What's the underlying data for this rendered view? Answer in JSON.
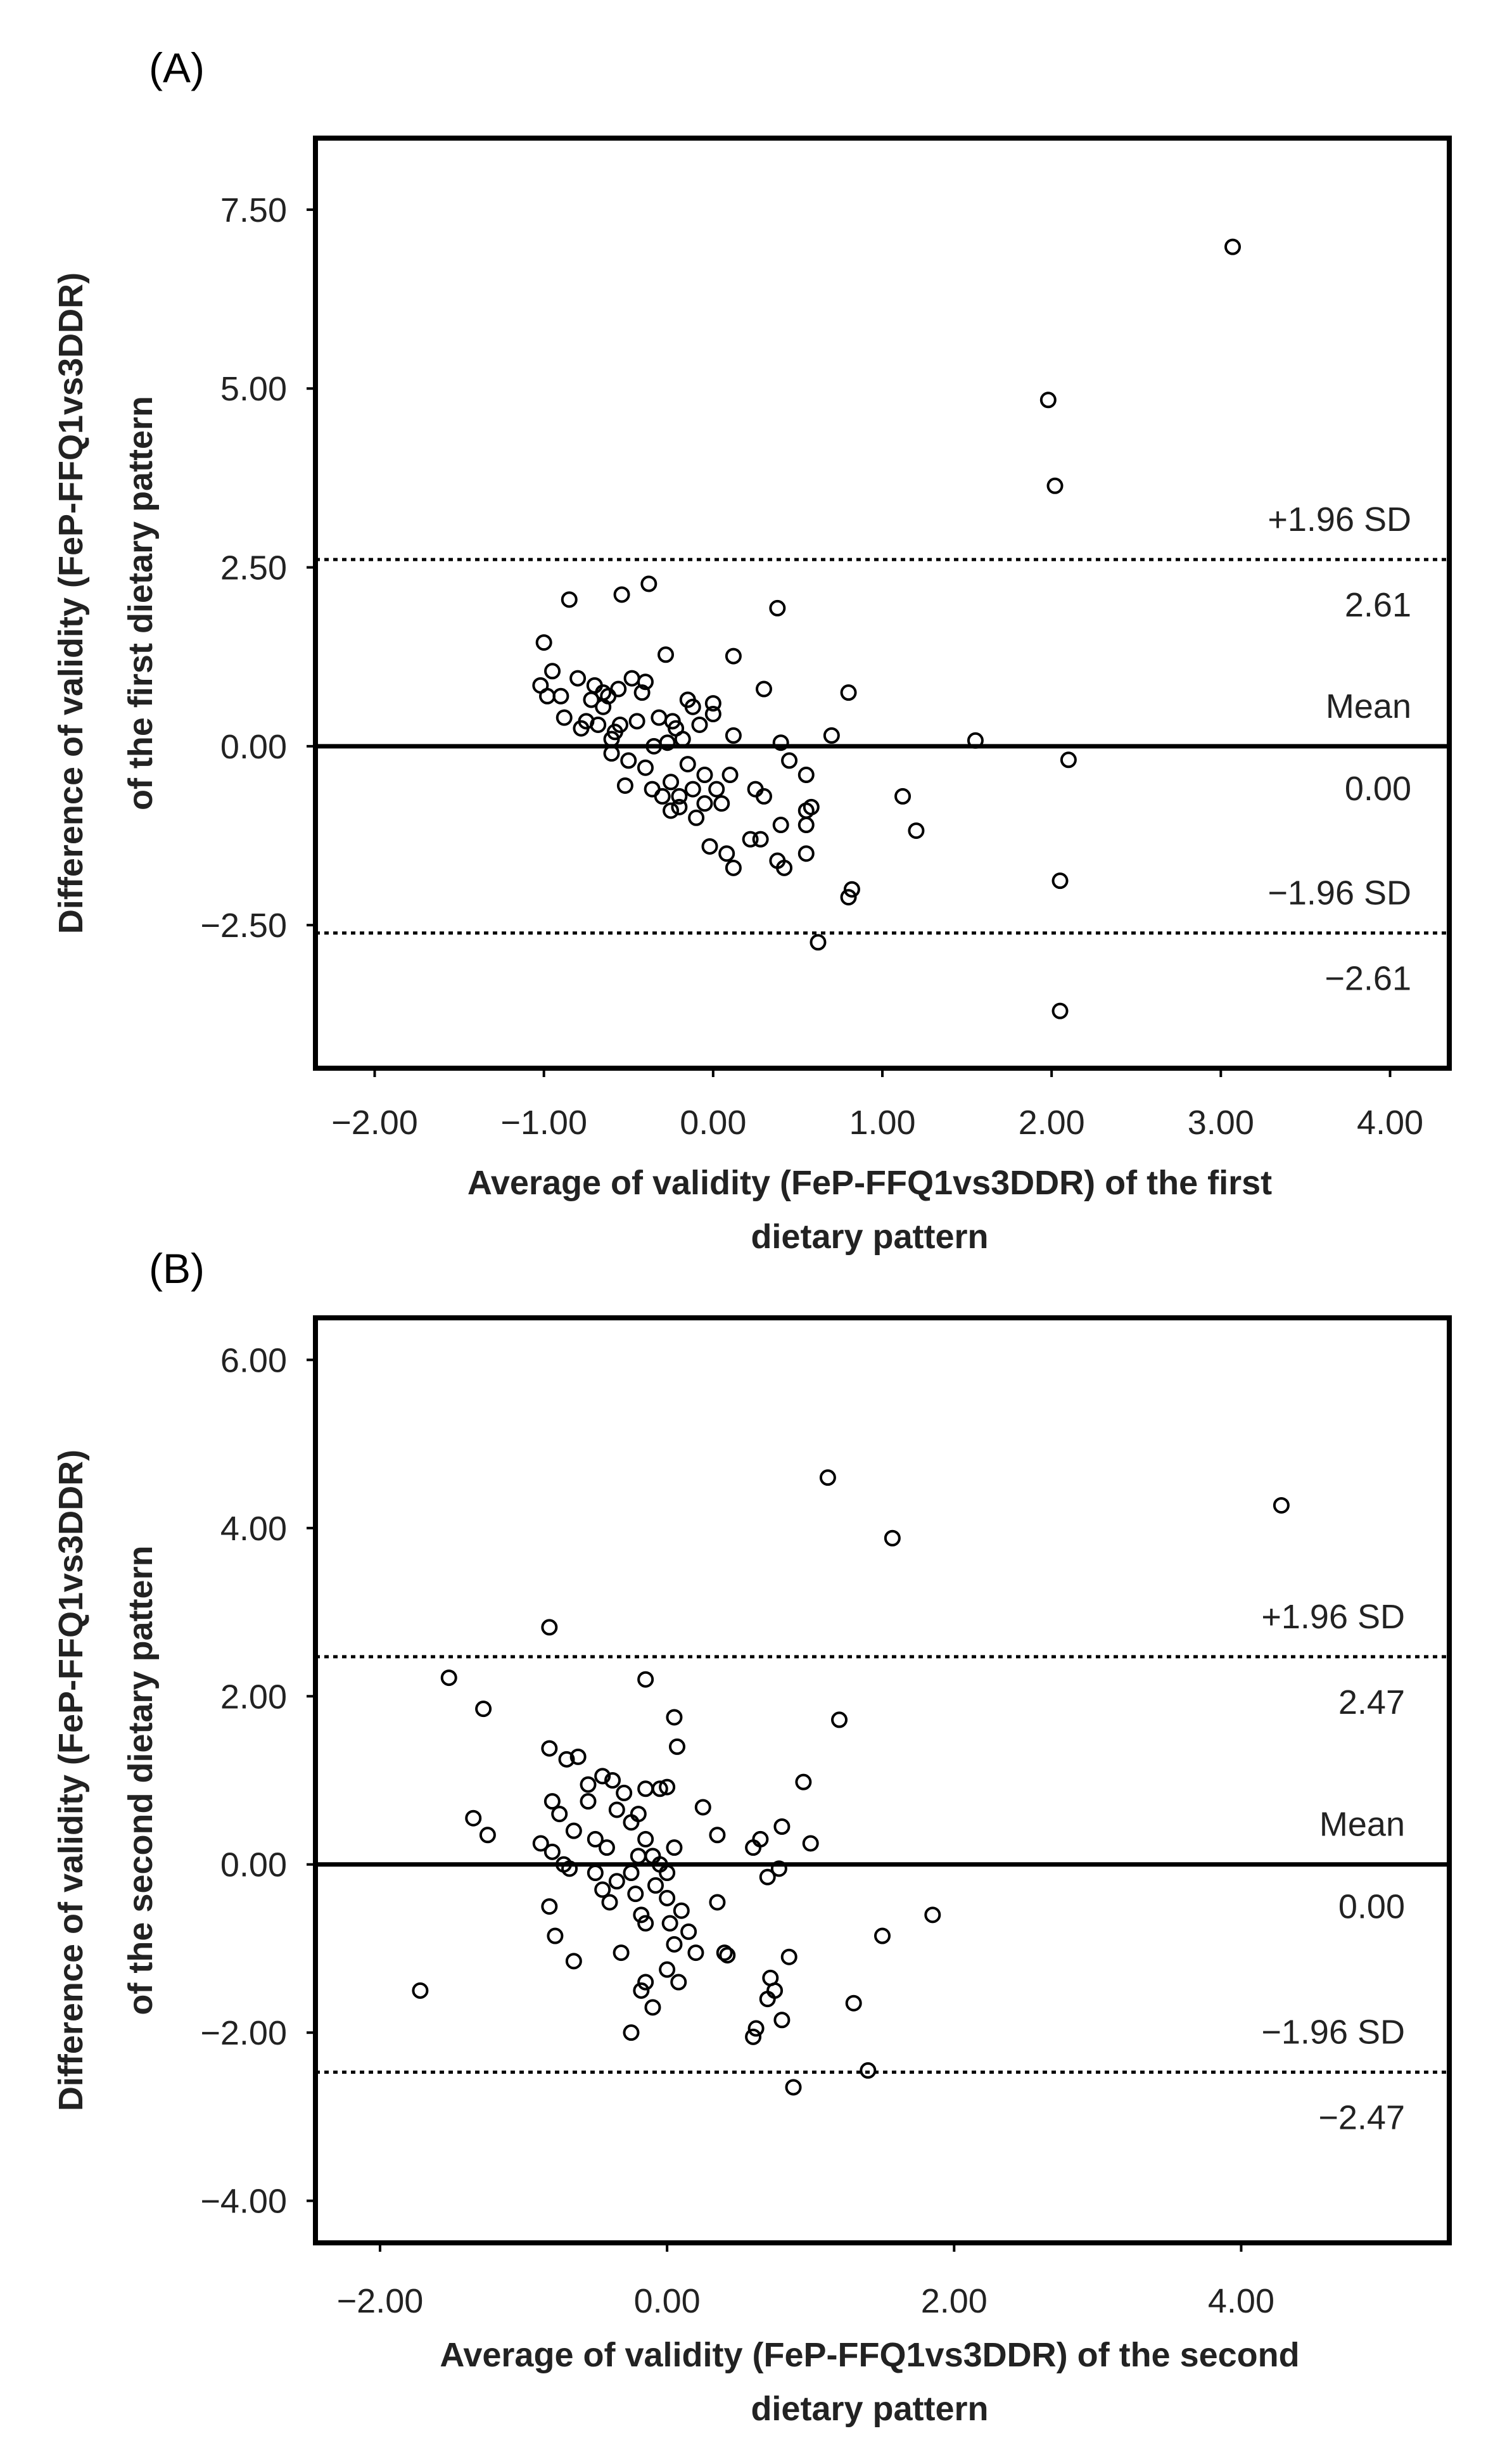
{
  "chart_data": [
    {
      "panel_label": "(A)",
      "type": "scatter",
      "xlabel_lines": [
        "Average of validity (FeP-FFQ1vs3DDR) of the first",
        "dietary pattern"
      ],
      "ylabel_lines": [
        "Difference of validity (FeP-FFQ1vs3DDR)",
        "of the first dietary pattern"
      ],
      "xlim": [
        -2.35,
        4.35
      ],
      "ylim": [
        -4.5,
        8.5
      ],
      "xticks": [
        -2,
        -1,
        0,
        1,
        2,
        3,
        4
      ],
      "xtick_labels": [
        "-2.00",
        "-1.00",
        "0.00",
        "1.00",
        "2.00",
        "3.00",
        "4.00"
      ],
      "yticks": [
        -2.5,
        0,
        2.5,
        5,
        7.5
      ],
      "ytick_labels": [
        "-2.50",
        "0.00",
        "2.50",
        "5.00",
        "7.50"
      ],
      "lines": {
        "mean": {
          "value": 0.0,
          "label": "Mean",
          "value_label": "0.00"
        },
        "upper": {
          "value": 2.61,
          "label": "+1.96 SD",
          "value_label": "2.61"
        },
        "lower": {
          "value": -2.61,
          "label": "−1.96 SD",
          "value_label": "−2.61"
        }
      },
      "points": [
        [
          3.07,
          6.98
        ],
        [
          1.98,
          4.84
        ],
        [
          2.02,
          3.64
        ],
        [
          2.05,
          -1.88
        ],
        [
          2.05,
          -3.7
        ],
        [
          2.1,
          -0.19
        ],
        [
          1.55,
          0.08
        ],
        [
          1.12,
          -0.7
        ],
        [
          1.2,
          -1.18
        ],
        [
          0.8,
          0.75
        ],
        [
          0.82,
          -2.0
        ],
        [
          0.8,
          -2.11
        ],
        [
          0.62,
          -2.74
        ],
        [
          0.7,
          0.15
        ],
        [
          0.38,
          1.93
        ],
        [
          0.12,
          1.26
        ],
        [
          0.3,
          0.8
        ],
        [
          0.4,
          0.05
        ],
        [
          0.45,
          -0.2
        ],
        [
          0.55,
          -0.4
        ],
        [
          0.55,
          -0.9
        ],
        [
          0.55,
          -1.1
        ],
        [
          0.58,
          -0.85
        ],
        [
          0.55,
          -1.5
        ],
        [
          0.4,
          -1.1
        ],
        [
          0.42,
          -1.7
        ],
        [
          0.38,
          -1.6
        ],
        [
          0.28,
          -1.3
        ],
        [
          0.25,
          -0.6
        ],
        [
          0.3,
          -0.7
        ],
        [
          0.22,
          -1.3
        ],
        [
          0.12,
          -1.7
        ],
        [
          0.08,
          -1.5
        ],
        [
          0.12,
          0.15
        ],
        [
          0.1,
          -0.4
        ],
        [
          0.05,
          -0.8
        ],
        [
          0.02,
          -0.6
        ],
        [
          0.0,
          0.45
        ],
        [
          0.0,
          0.6
        ],
        [
          -0.02,
          -1.4
        ],
        [
          -0.05,
          -0.8
        ],
        [
          -0.05,
          -0.4
        ],
        [
          -0.08,
          0.3
        ],
        [
          -0.1,
          -1.0
        ],
        [
          -0.12,
          0.55
        ],
        [
          -0.12,
          -0.6
        ],
        [
          -0.15,
          0.65
        ],
        [
          -0.15,
          -0.25
        ],
        [
          -0.18,
          0.1
        ],
        [
          -0.2,
          -0.7
        ],
        [
          -0.2,
          -0.85
        ],
        [
          -0.22,
          0.25
        ],
        [
          -0.24,
          0.35
        ],
        [
          -0.25,
          -0.5
        ],
        [
          -0.25,
          -0.9
        ],
        [
          -0.27,
          0.05
        ],
        [
          -0.28,
          1.28
        ],
        [
          -0.3,
          -0.7
        ],
        [
          -0.32,
          0.4
        ],
        [
          -0.35,
          0.0
        ],
        [
          -0.36,
          -0.6
        ],
        [
          -0.38,
          2.27
        ],
        [
          -0.4,
          0.9
        ],
        [
          -0.4,
          -0.3
        ],
        [
          -0.42,
          0.75
        ],
        [
          -0.45,
          0.35
        ],
        [
          -0.48,
          0.95
        ],
        [
          -0.5,
          -0.2
        ],
        [
          -0.52,
          -0.55
        ],
        [
          -0.54,
          2.12
        ],
        [
          -0.55,
          0.3
        ],
        [
          -0.56,
          0.8
        ],
        [
          -0.58,
          0.2
        ],
        [
          -0.6,
          0.1
        ],
        [
          -0.6,
          -0.1
        ],
        [
          -0.62,
          0.7
        ],
        [
          -0.65,
          0.55
        ],
        [
          -0.65,
          0.75
        ],
        [
          -0.68,
          0.3
        ],
        [
          -0.7,
          0.85
        ],
        [
          -0.72,
          0.65
        ],
        [
          -0.75,
          0.35
        ],
        [
          -0.78,
          0.25
        ],
        [
          -0.8,
          0.95
        ],
        [
          -0.85,
          2.05
        ],
        [
          -0.88,
          0.4
        ],
        [
          -0.9,
          0.7
        ],
        [
          -0.95,
          1.05
        ],
        [
          -0.98,
          0.7
        ],
        [
          -1.0,
          1.45
        ],
        [
          -1.02,
          0.85
        ]
      ]
    },
    {
      "panel_label": "(B)",
      "type": "scatter",
      "xlabel_lines": [
        "Average of validity (FeP-FFQ1vs3DDR) of the second",
        "dietary pattern"
      ],
      "ylabel_lines": [
        "Difference of validity (FeP-FFQ1vs3DDR)",
        "of the second dietary pattern"
      ],
      "xlim": [
        -2.45,
        5.45
      ],
      "ylim": [
        -4.5,
        6.5
      ],
      "xticks": [
        -2,
        0,
        2,
        4
      ],
      "xtick_labels": [
        "-2.00",
        "0.00",
        "2.00",
        "4.00"
      ],
      "yticks": [
        -4,
        -2,
        0,
        2,
        4,
        6
      ],
      "ytick_labels": [
        "-4.00",
        "-2.00",
        "0.00",
        "2.00",
        "4.00",
        "6.00"
      ],
      "lines": {
        "mean": {
          "value": 0.0,
          "label": "Mean",
          "value_label": "0.00"
        },
        "upper": {
          "value": 2.47,
          "label": "+1.96 SD",
          "value_label": "2.47"
        },
        "lower": {
          "value": -2.47,
          "label": "−1.96 SD",
          "value_label": "−2.47"
        }
      },
      "points": [
        [
          4.28,
          4.27
        ],
        [
          1.12,
          4.6
        ],
        [
          1.57,
          3.88
        ],
        [
          -0.82,
          2.82
        ],
        [
          -1.52,
          2.22
        ],
        [
          -0.15,
          2.2
        ],
        [
          -1.28,
          1.85
        ],
        [
          1.2,
          1.72
        ],
        [
          0.05,
          1.75
        ],
        [
          0.07,
          1.4
        ],
        [
          -0.82,
          1.38
        ],
        [
          -0.7,
          1.25
        ],
        [
          -0.62,
          1.28
        ],
        [
          0.95,
          0.98
        ],
        [
          -0.55,
          0.95
        ],
        [
          -0.45,
          1.05
        ],
        [
          -0.38,
          1.0
        ],
        [
          -0.3,
          0.85
        ],
        [
          -0.2,
          0.6
        ],
        [
          -0.15,
          0.9
        ],
        [
          -0.05,
          0.9
        ],
        [
          0.0,
          0.92
        ],
        [
          0.25,
          0.68
        ],
        [
          -0.8,
          0.75
        ],
        [
          -0.75,
          0.6
        ],
        [
          -0.65,
          0.4
        ],
        [
          -0.55,
          0.75
        ],
        [
          -0.5,
          0.3
        ],
        [
          -0.42,
          0.2
        ],
        [
          -0.35,
          0.65
        ],
        [
          -0.25,
          0.5
        ],
        [
          -0.2,
          0.1
        ],
        [
          -0.15,
          0.3
        ],
        [
          -0.1,
          0.1
        ],
        [
          -0.05,
          0.0
        ],
        [
          0.0,
          -0.1
        ],
        [
          0.05,
          0.2
        ],
        [
          0.35,
          0.35
        ],
        [
          0.6,
          0.2
        ],
        [
          0.65,
          0.3
        ],
        [
          0.8,
          0.45
        ],
        [
          1.0,
          0.25
        ],
        [
          -1.35,
          0.55
        ],
        [
          -1.25,
          0.35
        ],
        [
          -0.88,
          0.25
        ],
        [
          -0.8,
          0.15
        ],
        [
          -0.72,
          0.0
        ],
        [
          -0.68,
          -0.05
        ],
        [
          -0.5,
          -0.1
        ],
        [
          -0.45,
          -0.3
        ],
        [
          -0.4,
          -0.45
        ],
        [
          -0.35,
          -0.2
        ],
        [
          -0.25,
          -0.1
        ],
        [
          -0.22,
          -0.35
        ],
        [
          -0.18,
          -0.6
        ],
        [
          -0.15,
          -0.7
        ],
        [
          -0.08,
          -0.25
        ],
        [
          0.0,
          -0.4
        ],
        [
          0.02,
          -0.7
        ],
        [
          0.05,
          -0.95
        ],
        [
          0.1,
          -0.55
        ],
        [
          0.15,
          -0.8
        ],
        [
          0.2,
          -1.05
        ],
        [
          0.35,
          -0.45
        ],
        [
          0.4,
          -1.05
        ],
        [
          0.42,
          -1.08
        ],
        [
          0.7,
          -0.15
        ],
        [
          0.78,
          -0.05
        ],
        [
          0.85,
          -1.1
        ],
        [
          0.72,
          -1.35
        ],
        [
          0.7,
          -1.6
        ],
        [
          0.75,
          -1.5
        ],
        [
          0.8,
          -1.85
        ],
        [
          0.62,
          -1.95
        ],
        [
          0.6,
          -2.05
        ],
        [
          0.88,
          -2.65
        ],
        [
          1.3,
          -1.65
        ],
        [
          1.4,
          -2.45
        ],
        [
          1.5,
          -0.85
        ],
        [
          1.85,
          -0.6
        ],
        [
          -0.82,
          -0.5
        ],
        [
          -0.78,
          -0.85
        ],
        [
          -0.65,
          -1.15
        ],
        [
          -0.32,
          -1.05
        ],
        [
          -0.18,
          -1.5
        ],
        [
          -0.15,
          -1.4
        ],
        [
          -0.1,
          -1.7
        ],
        [
          0.0,
          -1.25
        ],
        [
          0.08,
          -1.4
        ],
        [
          -0.25,
          -2.0
        ],
        [
          -1.72,
          -1.5
        ]
      ]
    }
  ]
}
